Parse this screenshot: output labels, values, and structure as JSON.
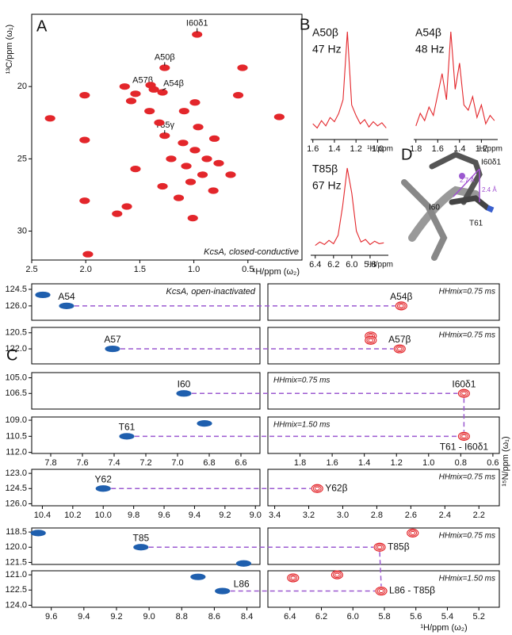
{
  "chart_data": [
    {
      "type": "scatter",
      "panel_label": "A",
      "ylabel": "¹³C/ppm (ω₁)",
      "xlabel": "¹H/ppm (ω₂)",
      "annotation": "KcsA, closed-conductive",
      "color": "#e3262b",
      "xlim": [
        2.5,
        0
      ],
      "ylim": [
        15,
        32
      ],
      "xticks": [
        2.5,
        {
          "value": 2,
          "label": "2.0"
        },
        1.5,
        {
          "value": 1,
          "label": "1.0"
        },
        0.5
      ],
      "yticks": [
        20,
        25,
        30
      ],
      "x": [
        0.97,
        1.27,
        1.37,
        1.29,
        1.27,
        2.33,
        2.01,
        2.01,
        1.98,
        2.01,
        1.71,
        1.62,
        1.54,
        1.58,
        1.54,
        1.4,
        1.64,
        1.1,
        0.99,
        0.88,
        1.07,
        0.92,
        1.03,
        1.21,
        0.96,
        0.81,
        0.77,
        1.14,
        1.29,
        1.32,
        1.41,
        1.09,
        0.82,
        0.66,
        0.21,
        0.59,
        0.99,
        0.55,
        1.01
      ],
      "values": [
        16.4,
        18.7,
        20.2,
        20.4,
        23.4,
        22.2,
        23.7,
        27.9,
        31.6,
        20.6,
        28.8,
        28.3,
        25.7,
        21.0,
        20.5,
        19.9,
        20.0,
        23.9,
        24.4,
        25.0,
        25.5,
        26.1,
        26.6,
        25.0,
        22.8,
        23.6,
        25.3,
        27.7,
        26.9,
        22.5,
        21.7,
        21.7,
        27.2,
        26.1,
        22.1,
        20.6,
        21.1,
        18.7,
        29.1
      ],
      "labels": [
        "I60δ1",
        "A50β",
        "A57β",
        "A54β",
        "T85γ",
        null,
        null,
        null,
        null,
        null,
        null,
        null,
        null,
        null,
        null,
        null,
        null,
        null,
        null,
        null,
        null,
        null,
        null,
        null,
        null,
        null,
        null,
        null,
        null,
        null,
        null,
        null,
        null,
        null,
        null,
        null,
        null,
        null,
        null
      ]
    },
    {
      "type": "line",
      "panel_label": "B",
      "title": "A50β",
      "subtitle": "47 Hz",
      "xlabel": "¹H/ppm",
      "color": "#e3262b",
      "xlim": [
        1.62,
        0.9
      ],
      "ylim": [
        0,
        100
      ],
      "xticks": [
        1.6,
        1.4,
        1.2,
        {
          "value": 1,
          "label": "1.0"
        }
      ],
      "x": [
        1.6,
        1.56,
        1.52,
        1.48,
        1.44,
        1.4,
        1.36,
        1.32,
        1.28,
        1.24,
        1.2,
        1.16,
        1.12,
        1.08,
        1.04,
        1.0,
        0.96,
        0.92
      ],
      "values": [
        12,
        8,
        15,
        10,
        18,
        14,
        22,
        35,
        100,
        30,
        20,
        12,
        16,
        9,
        14,
        10,
        13,
        8
      ]
    },
    {
      "type": "line",
      "title": "A54β",
      "subtitle": "48 Hz",
      "xlabel": "¹H/ppm",
      "color": "#e3262b",
      "xlim": [
        1.82,
        1.05
      ],
      "ylim": [
        0,
        100
      ],
      "xticks": [
        1.8,
        1.6,
        1.4,
        1.2
      ],
      "x": [
        1.8,
        1.76,
        1.72,
        1.68,
        1.64,
        1.6,
        1.56,
        1.52,
        1.48,
        1.44,
        1.4,
        1.36,
        1.32,
        1.28,
        1.24,
        1.2,
        1.16,
        1.12,
        1.08
      ],
      "values": [
        10,
        22,
        15,
        28,
        20,
        40,
        60,
        35,
        100,
        45,
        70,
        30,
        25,
        38,
        18,
        30,
        12,
        20,
        15
      ]
    },
    {
      "type": "line",
      "title": "T85β",
      "subtitle": "67 Hz",
      "xlabel": "¹H/ppm",
      "color": "#e3262b",
      "xlim": [
        6.45,
        5.6
      ],
      "ylim": [
        0,
        100
      ],
      "xticks": [
        6.4,
        6.2,
        {
          "value": 6,
          "label": "6.0"
        },
        5.8
      ],
      "x": [
        6.4,
        6.35,
        6.3,
        6.25,
        6.2,
        6.15,
        6.1,
        6.05,
        6.0,
        5.95,
        5.9,
        5.85,
        5.8,
        5.75,
        5.7,
        5.65
      ],
      "values": [
        8,
        12,
        9,
        14,
        10,
        20,
        55,
        100,
        70,
        25,
        12,
        15,
        9,
        13,
        10,
        11
      ]
    },
    {
      "type": "scatter",
      "annotation": "KcsA, open-inactivated",
      "note": "HHmix=0.75 ms",
      "ylim": [
        124,
        127.3
      ],
      "yticks": [
        124.5,
        {
          "value": 126,
          "label": "126.0"
        }
      ],
      "left": {
        "color": "#1f5fae",
        "xlim": [
          7.92,
          6.48
        ],
        "x": [
          7.85,
          7.7
        ],
        "values": [
          125.0,
          126.0
        ],
        "labels": [
          null,
          "A54"
        ]
      },
      "right": {
        "color": "#e3262b",
        "xlim": [
          2.0,
          0.56
        ],
        "x": [
          1.17
        ],
        "values": [
          126.0
        ],
        "labels": [
          "A54β"
        ]
      }
    },
    {
      "type": "scatter",
      "panel_label": "C",
      "note": "HHmix=0.75 ms",
      "ylim": [
        120,
        123.4
      ],
      "yticks": [
        120.5,
        {
          "value": 122,
          "label": "122.0"
        }
      ],
      "left": {
        "color": "#1f5fae",
        "xlim": [
          7.92,
          6.48
        ],
        "x": [
          7.41
        ],
        "values": [
          122.0
        ],
        "labels": [
          "A57"
        ]
      },
      "right": {
        "color": "#e3262b",
        "xlim": [
          2.0,
          0.56
        ],
        "x": [
          1.36,
          1.36,
          1.18
        ],
        "values": [
          120.8,
          121.2,
          122.0
        ],
        "labels": [
          null,
          null,
          "A57β"
        ]
      }
    },
    {
      "type": "scatter",
      "note": "HHmix=0.75 ms",
      "ylim": [
        104.5,
        108
      ],
      "yticks": [
        {
          "value": 105,
          "label": "105.0"
        },
        106.5
      ],
      "left": {
        "color": "#1f5fae",
        "xlim": [
          7.92,
          6.48
        ],
        "x": [
          6.96
        ],
        "values": [
          106.5
        ],
        "labels": [
          "I60"
        ]
      },
      "right": {
        "color": "#e3262b",
        "xlim": [
          2.0,
          0.56
        ],
        "x": [
          0.78
        ],
        "values": [
          106.5
        ],
        "labels": [
          "I60δ1"
        ]
      }
    },
    {
      "type": "scatter",
      "note": "HHmix=1.50 ms",
      "ylabel": "¹⁵N/ppm (ω₁)",
      "ylim": [
        108.7,
        112.1
      ],
      "yticks": [
        {
          "value": 109,
          "label": "109.0"
        },
        110.5,
        {
          "value": 112,
          "label": "112.0"
        }
      ],
      "left": {
        "color": "#1f5fae",
        "xlim": [
          7.92,
          6.48
        ],
        "xticks": [
          7.8,
          7.6,
          7.4,
          7.2,
          {
            "value": 7,
            "label": "7.0"
          },
          6.8,
          6.6
        ],
        "x": [
          7.32,
          6.83
        ],
        "values": [
          110.5,
          109.3
        ],
        "labels": [
          "T61",
          null
        ]
      },
      "right": {
        "color": "#e3262b",
        "xlim": [
          2.0,
          0.56
        ],
        "xticks": [
          1.8,
          1.6,
          1.4,
          1.2,
          {
            "value": 1,
            "label": "1.0"
          },
          0.8,
          0.6
        ],
        "x": [
          0.78
        ],
        "values": [
          110.5
        ],
        "labels": [
          "T61 - I60δ1"
        ]
      }
    },
    {
      "type": "scatter",
      "note": "HHmix=0.75 ms",
      "ylim": [
        122.6,
        126.2
      ],
      "yticks": [
        {
          "value": 123,
          "label": "123.0"
        },
        124.5,
        {
          "value": 126,
          "label": "126.0"
        }
      ],
      "left": {
        "color": "#1f5fae",
        "xlim": [
          10.47,
          8.97
        ],
        "xticks": [
          10.4,
          10.2,
          {
            "value": 10,
            "label": "10.0"
          },
          9.8,
          9.6,
          9.4,
          9.2,
          {
            "value": 9,
            "label": "9.0"
          }
        ],
        "x": [
          10.0
        ],
        "values": [
          124.5
        ],
        "labels": [
          "Y62"
        ]
      },
      "right": {
        "color": "#e3262b",
        "xlim": [
          3.44,
          2.08
        ],
        "xticks": [
          3.4,
          3.2,
          {
            "value": 3,
            "label": "3.0"
          },
          2.8,
          2.6,
          2.4,
          2.2
        ],
        "x": [
          3.15
        ],
        "values": [
          124.5
        ],
        "labels": [
          "Y62β"
        ]
      }
    },
    {
      "type": "scatter",
      "note": "HHmix=0.75 ms",
      "ylim": [
        118.1,
        121.7
      ],
      "yticks": [
        118.5,
        {
          "value": 120,
          "label": "120.0"
        },
        121.5
      ],
      "left": {
        "color": "#1f5fae",
        "xlim": [
          9.72,
          8.32
        ],
        "x": [
          9.68,
          9.05,
          8.42
        ],
        "values": [
          118.6,
          120.0,
          121.6
        ],
        "labels": [
          null,
          "T85",
          null
        ]
      },
      "right": {
        "color": "#e3262b",
        "xlim": [
          6.54,
          5.07
        ],
        "x": [
          5.83,
          5.62
        ],
        "values": [
          120.0,
          118.6
        ],
        "labels": [
          "T85β",
          null
        ]
      }
    },
    {
      "type": "scatter",
      "note": "HHmix=1.50 ms",
      "xlabel": "¹H/ppm (ω₂)",
      "ylim": [
        120.6,
        124.2
      ],
      "yticks": [
        {
          "value": 121,
          "label": "121.0"
        },
        122.5,
        {
          "value": 124,
          "label": "124.0"
        }
      ],
      "left": {
        "color": "#1f5fae",
        "xlim": [
          9.72,
          8.32
        ],
        "xticks": [
          9.6,
          9.4,
          9.2,
          {
            "value": 9,
            "label": "9.0"
          },
          8.8,
          8.6,
          8.4
        ],
        "x": [
          8.7,
          8.55
        ],
        "values": [
          121.2,
          122.6
        ],
        "labels": [
          null,
          "L86"
        ]
      },
      "right": {
        "color": "#e3262b",
        "xlim": [
          6.54,
          5.07
        ],
        "xticks": [
          6.4,
          6.2,
          {
            "value": 6,
            "label": "6.0"
          },
          5.8,
          5.6,
          5.4,
          5.2
        ],
        "x": [
          6.38,
          6.1,
          5.82
        ],
        "values": [
          121.3,
          121.0,
          122.6
        ],
        "labels": [
          null,
          null,
          "L86 - T85β"
        ]
      }
    }
  ],
  "panel_D": {
    "panel_label": "D",
    "labels": [
      "I60δ1",
      "2.7 Å",
      "2.4 Å",
      "I60",
      "T61"
    ]
  }
}
